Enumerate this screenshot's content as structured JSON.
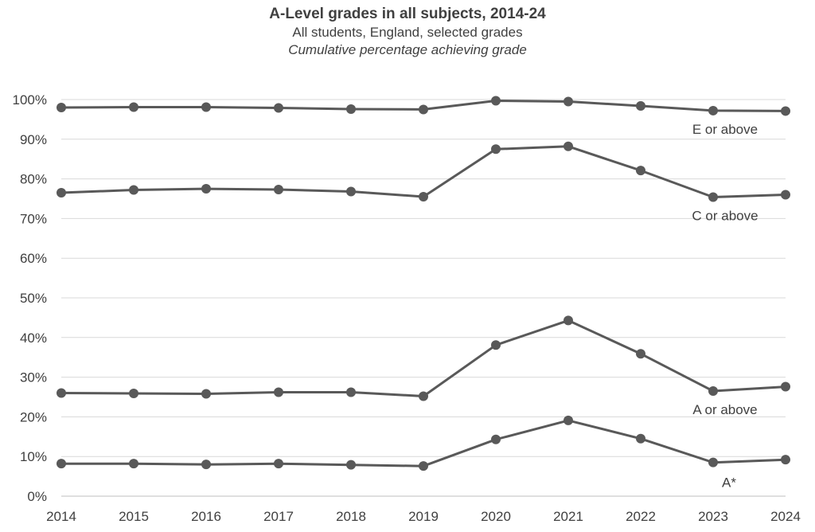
{
  "chart_data": {
    "type": "line",
    "title": "A-Level grades in all subjects, 2014-24",
    "subtitle": "All students, England, selected grades",
    "subtitle2": "Cumulative percentage achieving grade",
    "x": [
      "2014",
      "2015",
      "2016",
      "2017",
      "2018",
      "2019",
      "2020",
      "2021",
      "2022",
      "2023",
      "2024"
    ],
    "y_ticks": [
      "0%",
      "10%",
      "20%",
      "30%",
      "40%",
      "50%",
      "60%",
      "70%",
      "80%",
      "90%",
      "100%"
    ],
    "ylim": [
      0,
      100
    ],
    "grid": true,
    "line_color": "#595959",
    "series": [
      {
        "name": "E or above",
        "values": [
          98.0,
          98.1,
          98.1,
          97.9,
          97.6,
          97.5,
          99.7,
          99.5,
          98.4,
          97.2,
          97.1
        ]
      },
      {
        "name": "C or above",
        "values": [
          76.5,
          77.2,
          77.5,
          77.3,
          76.8,
          75.5,
          87.5,
          88.2,
          82.1,
          75.4,
          76.0
        ]
      },
      {
        "name": "A or above",
        "values": [
          26.0,
          25.9,
          25.8,
          26.2,
          26.2,
          25.2,
          38.1,
          44.3,
          35.9,
          26.5,
          27.6
        ]
      },
      {
        "name": "A*",
        "values": [
          8.2,
          8.2,
          8.0,
          8.2,
          7.9,
          7.6,
          14.3,
          19.1,
          14.5,
          8.5,
          9.2
        ]
      }
    ]
  }
}
